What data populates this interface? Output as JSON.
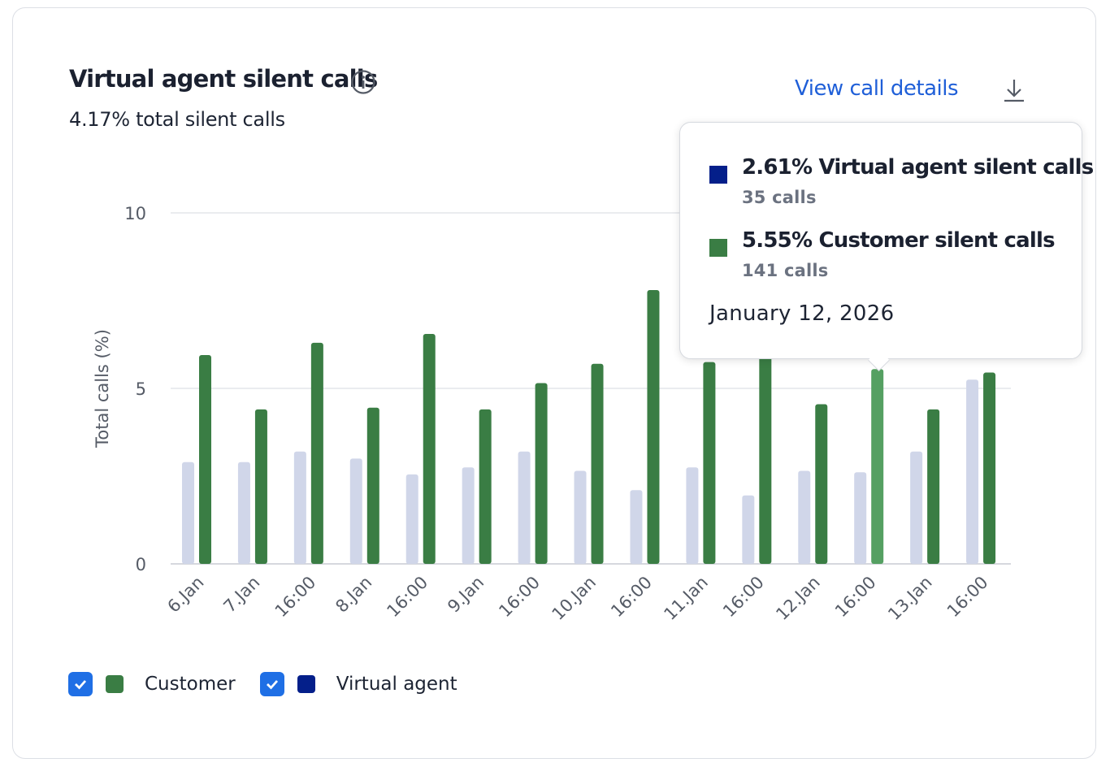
{
  "header": {
    "title": "Virtual agent silent calls",
    "subtitle": "4.17% total silent calls",
    "view_link": "View call details"
  },
  "icons": {
    "info": "info-icon",
    "download": "download-icon"
  },
  "colors": {
    "customer": "#3a7d44",
    "customer_highlight": "#55a062",
    "virtual_agent": "#041f8a",
    "virtual_agent_bar": "#d0d6e9",
    "checkbox": "#1f6fe5",
    "link": "#1f5fd8"
  },
  "legend": [
    {
      "label": "Customer",
      "checked": true,
      "color": "#3a7d44"
    },
    {
      "label": "Virtual agent",
      "checked": true,
      "color": "#041f8a"
    }
  ],
  "tooltip": {
    "rows": [
      {
        "label": "2.61% Virtual agent silent calls",
        "sub": "35 calls",
        "color": "#041f8a"
      },
      {
        "label": "5.55% Customer silent calls",
        "sub": "141 calls",
        "color": "#3a7d44"
      }
    ],
    "date": "January 12, 2026"
  },
  "chart_data": {
    "type": "bar",
    "ylabel": "Total calls (%)",
    "xlabel": "",
    "ylim": [
      0,
      10
    ],
    "yticks": [
      0,
      5,
      10
    ],
    "grid": true,
    "categories": [
      "6.Jan",
      "7.Jan",
      "16:00",
      "8.Jan",
      "16:00",
      "9.Jan",
      "16:00",
      "10.Jan",
      "16:00",
      "11.Jan",
      "16:00",
      "12.Jan",
      "16:00",
      "13.Jan",
      "16:00"
    ],
    "series": [
      {
        "name": "Virtual agent",
        "values": [
          2.9,
          2.9,
          3.2,
          3.0,
          2.55,
          2.75,
          3.2,
          2.65,
          2.1,
          2.75,
          1.95,
          2.65,
          2.61,
          3.2,
          5.25
        ]
      },
      {
        "name": "Customer",
        "values": [
          5.95,
          4.4,
          6.3,
          4.45,
          6.55,
          4.4,
          5.15,
          5.7,
          7.8,
          5.75,
          6.2,
          4.55,
          5.55,
          4.4,
          5.45
        ]
      }
    ],
    "highlight_index": 12
  }
}
